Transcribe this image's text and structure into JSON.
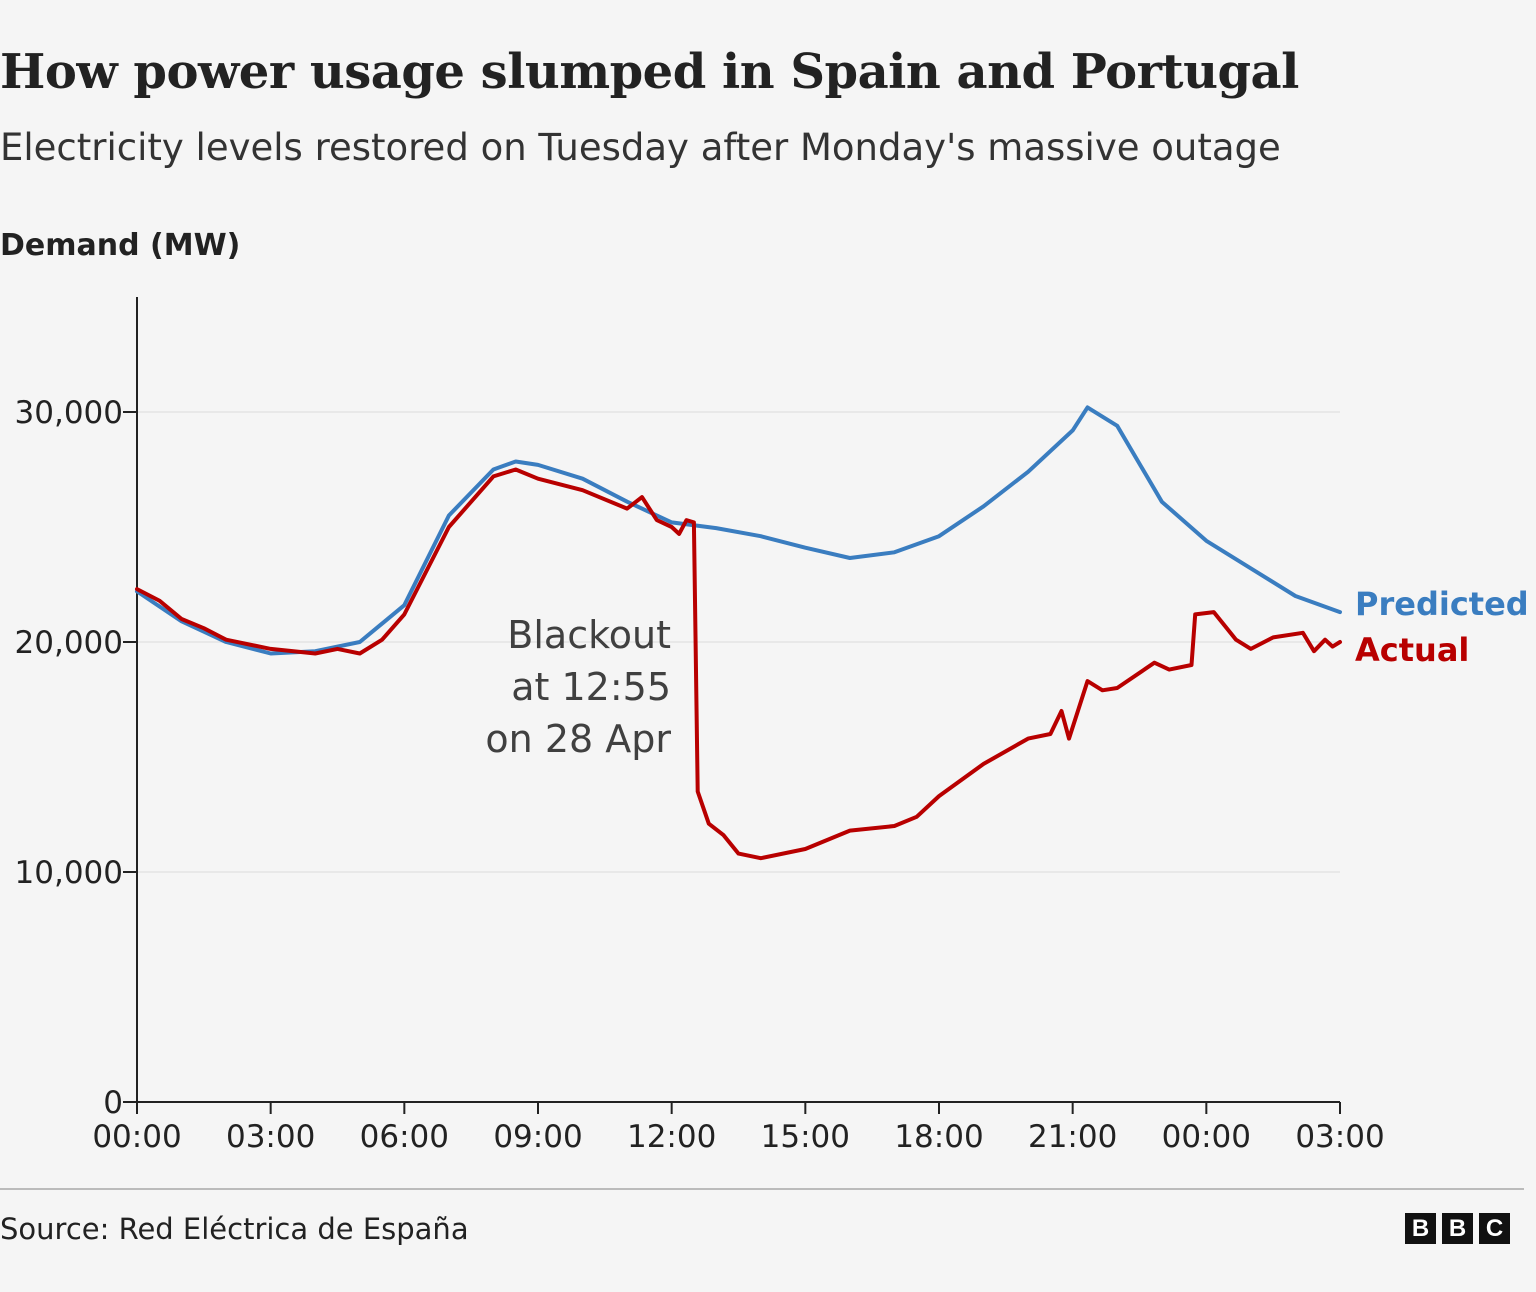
{
  "title": "How power usage slumped in Spain and Portugal",
  "subtitle": "Electricity levels restored on Tuesday after Monday's massive outage",
  "source": "Source: Red Eléctrica de España",
  "logo": "BBC",
  "chart_data": {
    "type": "line",
    "ylabel": "Demand (MW)",
    "ylim": [
      0,
      35000
    ],
    "yticks": [
      0,
      10000,
      20000,
      30000
    ],
    "ytick_labels": [
      "0",
      "10,000",
      "20,000",
      "30,000"
    ],
    "xlim": [
      "28 Apr 00:00",
      "29 Apr 03:00"
    ],
    "xticks": [
      "00:00",
      "03:00",
      "06:00",
      "09:00",
      "12:00",
      "15:00",
      "18:00",
      "21:00",
      "00:00",
      "03:00"
    ],
    "grid": "horizontal",
    "legend_placement": "right (line-end labels)",
    "annotation": [
      "Blackout",
      "at 12:55",
      "on 28 Apr"
    ],
    "colors": {
      "Predicted": "#3a7dc0",
      "Actual": "#b80000"
    },
    "series": [
      {
        "name": "Predicted",
        "points": [
          [
            "28 Apr 00:00",
            22200
          ],
          [
            "28 Apr 01:00",
            20900
          ],
          [
            "28 Apr 02:00",
            20000
          ],
          [
            "28 Apr 03:00",
            19500
          ],
          [
            "28 Apr 04:00",
            19600
          ],
          [
            "28 Apr 05:00",
            20000
          ],
          [
            "28 Apr 06:00",
            21600
          ],
          [
            "28 Apr 07:00",
            25500
          ],
          [
            "28 Apr 08:00",
            27500
          ],
          [
            "28 Apr 08:30",
            27850
          ],
          [
            "28 Apr 09:00",
            27700
          ],
          [
            "28 Apr 10:00",
            27100
          ],
          [
            "28 Apr 11:00",
            26100
          ],
          [
            "28 Apr 12:00",
            25200
          ],
          [
            "28 Apr 13:00",
            24950
          ],
          [
            "28 Apr 14:00",
            24600
          ],
          [
            "28 Apr 15:00",
            24100
          ],
          [
            "28 Apr 16:00",
            23650
          ],
          [
            "28 Apr 17:00",
            23900
          ],
          [
            "28 Apr 18:00",
            24600
          ],
          [
            "28 Apr 19:00",
            25900
          ],
          [
            "28 Apr 20:00",
            27400
          ],
          [
            "28 Apr 21:00",
            29200
          ],
          [
            "28 Apr 21:20",
            30200
          ],
          [
            "28 Apr 22:00",
            29400
          ],
          [
            "28 Apr 23:00",
            26100
          ],
          [
            "29 Apr 00:00",
            24400
          ],
          [
            "29 Apr 01:00",
            23200
          ],
          [
            "29 Apr 02:00",
            22000
          ],
          [
            "29 Apr 03:00",
            21300
          ]
        ]
      },
      {
        "name": "Actual",
        "points": [
          [
            "28 Apr 00:00",
            22300
          ],
          [
            "28 Apr 00:30",
            21800
          ],
          [
            "28 Apr 01:00",
            21000
          ],
          [
            "28 Apr 01:30",
            20600
          ],
          [
            "28 Apr 02:00",
            20100
          ],
          [
            "28 Apr 03:00",
            19700
          ],
          [
            "28 Apr 04:00",
            19500
          ],
          [
            "28 Apr 04:30",
            19700
          ],
          [
            "28 Apr 05:00",
            19500
          ],
          [
            "28 Apr 05:30",
            20100
          ],
          [
            "28 Apr 06:00",
            21200
          ],
          [
            "28 Apr 07:00",
            25000
          ],
          [
            "28 Apr 08:00",
            27200
          ],
          [
            "28 Apr 08:30",
            27500
          ],
          [
            "28 Apr 09:00",
            27100
          ],
          [
            "28 Apr 10:00",
            26600
          ],
          [
            "28 Apr 11:00",
            25800
          ],
          [
            "28 Apr 11:20",
            26300
          ],
          [
            "28 Apr 11:40",
            25300
          ],
          [
            "28 Apr 12:00",
            25000
          ],
          [
            "28 Apr 12:10",
            24700
          ],
          [
            "28 Apr 12:20",
            25300
          ],
          [
            "28 Apr 12:30",
            25200
          ],
          [
            "28 Apr 12:35",
            13500
          ],
          [
            "28 Apr 12:50",
            12100
          ],
          [
            "28 Apr 13:10",
            11600
          ],
          [
            "28 Apr 13:30",
            10800
          ],
          [
            "28 Apr 14:00",
            10600
          ],
          [
            "28 Apr 15:00",
            11000
          ],
          [
            "28 Apr 16:00",
            11800
          ],
          [
            "28 Apr 17:00",
            12000
          ],
          [
            "28 Apr 17:30",
            12400
          ],
          [
            "28 Apr 18:00",
            13300
          ],
          [
            "28 Apr 19:00",
            14700
          ],
          [
            "28 Apr 20:00",
            15800
          ],
          [
            "28 Apr 20:30",
            16000
          ],
          [
            "28 Apr 20:45",
            17000
          ],
          [
            "28 Apr 20:55",
            15800
          ],
          [
            "28 Apr 21:20",
            18300
          ],
          [
            "28 Apr 21:40",
            17900
          ],
          [
            "28 Apr 22:00",
            18000
          ],
          [
            "28 Apr 22:50",
            19100
          ],
          [
            "28 Apr 23:10",
            18800
          ],
          [
            "28 Apr 23:40",
            19000
          ],
          [
            "28 Apr 23:45",
            21200
          ],
          [
            "29 Apr 00:10",
            21300
          ],
          [
            "29 Apr 00:40",
            20100
          ],
          [
            "29 Apr 01:00",
            19700
          ],
          [
            "29 Apr 01:30",
            20200
          ],
          [
            "29 Apr 02:10",
            20400
          ],
          [
            "29 Apr 02:25",
            19600
          ],
          [
            "29 Apr 02:40",
            20100
          ],
          [
            "29 Apr 02:50",
            19800
          ],
          [
            "29 Apr 03:00",
            20000
          ]
        ]
      }
    ]
  }
}
